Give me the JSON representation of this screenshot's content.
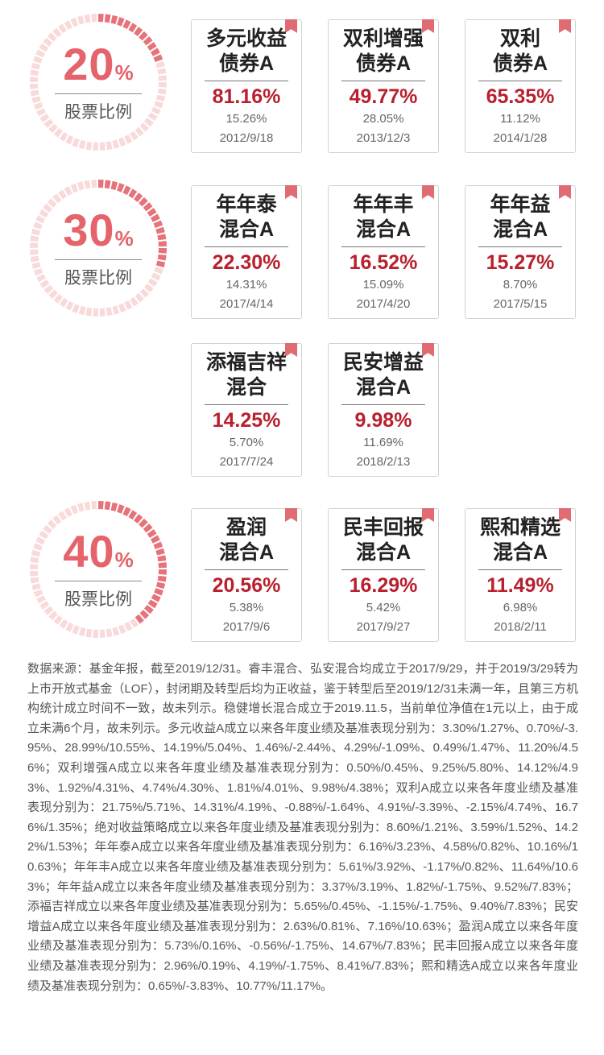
{
  "groups": [
    {
      "percent": "20",
      "percent_sign": "%",
      "label": "股票比例",
      "funds": [
        {
          "name": "多元收益\n债券A",
          "return": "81.16%",
          "benchmark": "15.26%",
          "date": "2012/9/18"
        },
        {
          "name": "双利增强\n债券A",
          "return": "49.77%",
          "benchmark": "28.05%",
          "date": "2013/12/3"
        },
        {
          "name": "双利\n债券A",
          "return": "65.35%",
          "benchmark": "11.12%",
          "date": "2014/1/28"
        }
      ]
    },
    {
      "percent": "30",
      "percent_sign": "%",
      "label": "股票比例",
      "funds": [
        {
          "name": "年年泰\n混合A",
          "return": "22.30%",
          "benchmark": "14.31%",
          "date": "2017/4/14"
        },
        {
          "name": "年年丰\n混合A",
          "return": "16.52%",
          "benchmark": "15.09%",
          "date": "2017/4/20"
        },
        {
          "name": "年年益\n混合A",
          "return": "15.27%",
          "benchmark": "8.70%",
          "date": "2017/5/15"
        },
        {
          "name": "添福吉祥\n混合",
          "return": "14.25%",
          "benchmark": "5.70%",
          "date": "2017/7/24"
        },
        {
          "name": "民安增益\n混合A",
          "return": "9.98%",
          "benchmark": "11.69%",
          "date": "2018/2/13"
        }
      ]
    },
    {
      "percent": "40",
      "percent_sign": "%",
      "label": "股票比例",
      "funds": [
        {
          "name": "盈润\n混合A",
          "return": "20.56%",
          "benchmark": "5.38%",
          "date": "2017/9/6"
        },
        {
          "name": "民丰回报\n混合A",
          "return": "16.29%",
          "benchmark": "5.42%",
          "date": "2017/9/27"
        },
        {
          "name": "熙和精选\n混合A",
          "return": "11.49%",
          "benchmark": "6.98%",
          "date": "2018/2/11"
        }
      ]
    }
  ],
  "colors": {
    "accent": "#e5636b",
    "value": "#b9202e",
    "ring_light": "#f9dada",
    "ring_dark": "#e7737a"
  },
  "footnote": "数据来源：基金年报，截至2019/12/31。睿丰混合、弘安混合均成立于2017/9/29，并于2019/3/29转为上市开放式基金（LOF），封闭期及转型后均为正收益，鉴于转型后至2019/12/31未满一年，且第三方机构统计成立时间不一致，故未列示。稳健增长混合成立于2019.11.5，当前单位净值在1元以上，由于成立未满6个月，故未列示。多元收益A成立以来各年度业绩及基准表现分别为：3.30%/1.27%、0.70%/-3.95%、28.99%/10.55%、14.19%/5.04%、1.46%/-2.44%、4.29%/-1.09%、0.49%/1.47%、11.20%/4.56%；双利增强A成立以来各年度业绩及基准表现分别为：0.50%/0.45%、9.25%/5.80%、14.12%/4.93%、1.92%/4.31%、4.74%/4.30%、1.81%/4.01%、9.98%/4.38%；双利A成立以来各年度业绩及基准表现分别为：21.75%/5.71%、14.31%/4.19%、-0.88%/-1.64%、4.91%/-3.39%、-2.15%/4.74%、16.76%/1.35%；绝对收益策略成立以来各年度业绩及基准表现分别为：8.60%/1.21%、3.59%/1.52%、14.22%/1.53%；年年泰A成立以来各年度业绩及基准表现分别为：6.16%/3.23%、4.58%/0.82%、10.16%/10.63%；年年丰A成立以来各年度业绩及基准表现分别为：5.61%/3.92%、-1.17%/0.82%、11.64%/10.63%；年年益A成立以来各年度业绩及基准表现分别为：3.37%/3.19%、1.82%/-1.75%、9.52%/7.83%；添福吉祥成立以来各年度业绩及基准表现分别为：5.65%/0.45%、-1.15%/-1.75%、9.40%/7.83%；民安增益A成立以来各年度业绩及基准表现分别为：2.63%/0.81%、7.16%/10.63%；盈润A成立以来各年度业绩及基准表现分别为：5.73%/0.16%、-0.56%/-1.75%、14.67%/7.83%；民丰回报A成立以来各年度业绩及基准表现分别为：2.96%/0.19%、4.19%/-1.75%、8.41%/7.83%；熙和精选A成立以来各年度业绩及基准表现分别为：0.65%/-3.83%、10.77%/11.17%。"
}
